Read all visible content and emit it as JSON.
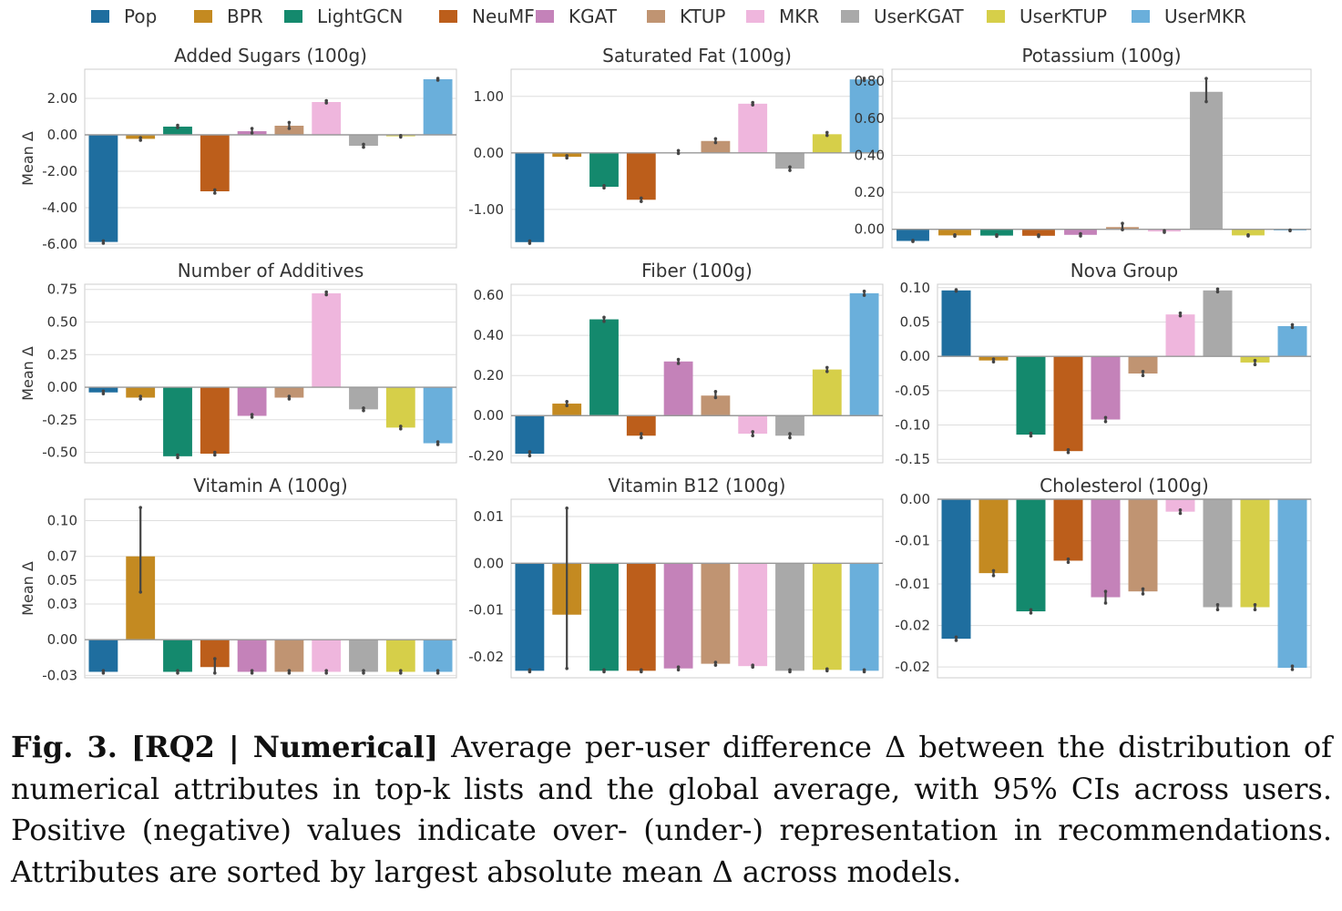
{
  "legend": {
    "items": [
      {
        "name": "Pop",
        "color": "#1f6e9f"
      },
      {
        "name": "BPR",
        "color": "#c48a21"
      },
      {
        "name": "LightGCN",
        "color": "#14896d"
      },
      {
        "name": "NeuMF",
        "color": "#bc5e1b"
      },
      {
        "name": "KGAT",
        "color": "#c482b9"
      },
      {
        "name": "KTUP",
        "color": "#c09472"
      },
      {
        "name": "MKR",
        "color": "#efb6dd"
      },
      {
        "name": "UserKGAT",
        "color": "#a9a9a9"
      },
      {
        "name": "UserKTUP",
        "color": "#d6cf49"
      },
      {
        "name": "UserMKR",
        "color": "#6aafdb"
      }
    ]
  },
  "chart_data": [
    {
      "type": "bar",
      "title": "Added Sugars (100g)",
      "ylabel": "Mean Δ",
      "categories": [
        "Pop",
        "BPR",
        "LightGCN",
        "NeuMF",
        "KGAT",
        "KTUP",
        "MKR",
        "UserKGAT",
        "UserKTUP",
        "UserMKR"
      ],
      "values": [
        -5.88,
        -0.22,
        0.45,
        -3.1,
        0.2,
        0.5,
        1.8,
        -0.6,
        -0.08,
        3.05
      ],
      "ci_low": [
        -5.95,
        -0.3,
        0.4,
        -3.2,
        0.1,
        0.35,
        1.75,
        -0.68,
        -0.12,
        3.0
      ],
      "ci_high": [
        -5.82,
        -0.16,
        0.52,
        -3.02,
        0.35,
        0.68,
        1.87,
        -0.52,
        -0.04,
        3.1
      ],
      "yticks": [
        2.0,
        0.0,
        -2.0,
        -4.0,
        -6.0
      ],
      "yticklabels": [
        "2.00",
        "0.00",
        "-2.00",
        "-4.00",
        "-6.00"
      ],
      "ylim": [
        -6.2,
        3.6
      ]
    },
    {
      "type": "bar",
      "title": "Saturated Fat (100g)",
      "ylabel": "",
      "categories": [
        "Pop",
        "BPR",
        "LightGCN",
        "NeuMF",
        "KGAT",
        "KTUP",
        "MKR",
        "UserKGAT",
        "UserKTUP",
        "UserMKR"
      ],
      "values": [
        -1.58,
        -0.07,
        -0.6,
        -0.83,
        0.0,
        0.21,
        0.87,
        -0.28,
        0.33,
        1.3
      ],
      "ci_low": [
        -1.6,
        -0.09,
        -0.62,
        -0.86,
        -0.01,
        0.18,
        0.85,
        -0.31,
        0.31,
        1.28
      ],
      "ci_high": [
        -1.56,
        -0.05,
        -0.58,
        -0.8,
        0.04,
        0.25,
        0.89,
        -0.25,
        0.36,
        1.32
      ],
      "yticks": [
        1.0,
        0.0,
        -1.0
      ],
      "yticklabels": [
        "1.00",
        "0.00",
        "-1.00"
      ],
      "ylim": [
        -1.68,
        1.48
      ]
    },
    {
      "type": "bar",
      "title": "Potassium (100g)",
      "ylabel": "",
      "categories": [
        "Pop",
        "BPR",
        "LightGCN",
        "NeuMF",
        "KGAT",
        "KTUP",
        "MKR",
        "UserKGAT",
        "UserKTUP",
        "UserMKR"
      ],
      "values": [
        -0.063,
        -0.033,
        -0.034,
        -0.035,
        -0.03,
        0.012,
        -0.012,
        0.743,
        -0.033,
        -0.006
      ],
      "ci_low": [
        -0.066,
        -0.037,
        -0.038,
        -0.039,
        -0.036,
        -0.002,
        -0.016,
        0.69,
        -0.036,
        -0.008
      ],
      "ci_high": [
        -0.06,
        -0.03,
        -0.03,
        -0.031,
        -0.024,
        0.032,
        -0.008,
        0.815,
        -0.03,
        -0.004
      ],
      "yticks": [
        0.8,
        0.6,
        0.4,
        0.2,
        0.0
      ],
      "yticklabels": [
        "0.80",
        "0.60",
        "0.40",
        "0.20",
        "0.00"
      ],
      "ylim": [
        -0.1,
        0.865
      ]
    },
    {
      "type": "bar",
      "title": "Number of Additives",
      "ylabel": "Mean Δ",
      "categories": [
        "Pop",
        "BPR",
        "LightGCN",
        "NeuMF",
        "KGAT",
        "KTUP",
        "MKR",
        "UserKGAT",
        "UserKTUP",
        "UserMKR"
      ],
      "values": [
        -0.04,
        -0.08,
        -0.53,
        -0.51,
        -0.22,
        -0.08,
        0.72,
        -0.17,
        -0.31,
        -0.43
      ],
      "ci_low": [
        -0.05,
        -0.09,
        -0.54,
        -0.52,
        -0.23,
        -0.09,
        0.71,
        -0.18,
        -0.32,
        -0.44
      ],
      "ci_high": [
        -0.03,
        -0.07,
        -0.52,
        -0.5,
        -0.21,
        -0.07,
        0.73,
        -0.16,
        -0.3,
        -0.42
      ],
      "yticks": [
        0.75,
        0.5,
        0.25,
        0.0,
        -0.25,
        -0.5
      ],
      "yticklabels": [
        "0.75",
        "0.50",
        "0.25",
        "0.00",
        "-0.25",
        "-0.50"
      ],
      "ylim": [
        -0.58,
        0.79
      ]
    },
    {
      "type": "bar",
      "title": "Fiber (100g)",
      "ylabel": "",
      "categories": [
        "Pop",
        "BPR",
        "LightGCN",
        "NeuMF",
        "KGAT",
        "KTUP",
        "MKR",
        "UserKGAT",
        "UserKTUP",
        "UserMKR"
      ],
      "values": [
        -0.19,
        0.06,
        0.48,
        -0.1,
        0.27,
        0.1,
        -0.09,
        -0.1,
        0.23,
        0.61
      ],
      "ci_low": [
        -0.2,
        0.05,
        0.47,
        -0.11,
        0.26,
        0.09,
        -0.1,
        -0.11,
        0.22,
        0.6
      ],
      "ci_high": [
        -0.18,
        0.07,
        0.49,
        -0.09,
        0.28,
        0.12,
        -0.08,
        -0.09,
        0.24,
        0.62
      ],
      "yticks": [
        0.6,
        0.4,
        0.2,
        0.0,
        -0.2
      ],
      "yticklabels": [
        "0.60",
        "0.40",
        "0.20",
        "0.00",
        "-0.20"
      ],
      "ylim": [
        -0.235,
        0.655
      ]
    },
    {
      "type": "bar",
      "title": "Nova Group",
      "ylabel": "",
      "categories": [
        "Pop",
        "BPR",
        "LightGCN",
        "NeuMF",
        "KGAT",
        "KTUP",
        "MKR",
        "UserKGAT",
        "UserKTUP",
        "UserMKR"
      ],
      "values": [
        0.096,
        -0.006,
        -0.114,
        -0.138,
        -0.092,
        -0.025,
        0.061,
        0.096,
        -0.009,
        0.044
      ],
      "ci_low": [
        0.095,
        -0.008,
        -0.116,
        -0.14,
        -0.095,
        -0.028,
        0.059,
        0.094,
        -0.012,
        0.042
      ],
      "ci_high": [
        0.097,
        -0.004,
        -0.112,
        -0.136,
        -0.089,
        -0.022,
        0.063,
        0.098,
        -0.006,
        0.046
      ],
      "yticks": [
        0.1,
        0.05,
        0.0,
        -0.05,
        -0.1,
        -0.15
      ],
      "yticklabels": [
        "0.10",
        "0.05",
        "0.00",
        "-0.05",
        "-0.10",
        "-0.15"
      ],
      "ylim": [
        -0.155,
        0.105
      ]
    },
    {
      "type": "bar",
      "title": "Vitamin A (100g)",
      "ylabel": "Mean Δ",
      "categories": [
        "Pop",
        "BPR",
        "LightGCN",
        "NeuMF",
        "KGAT",
        "KTUP",
        "MKR",
        "UserKGAT",
        "UserKTUP",
        "UserMKR"
      ],
      "values": [
        -0.027,
        0.07,
        -0.027,
        -0.023,
        -0.027,
        -0.027,
        -0.027,
        -0.027,
        -0.027,
        -0.027
      ],
      "ci_low": [
        -0.028,
        0.04,
        -0.028,
        -0.028,
        -0.028,
        -0.028,
        -0.028,
        -0.028,
        -0.028,
        -0.028
      ],
      "ci_high": [
        -0.026,
        0.111,
        -0.026,
        -0.016,
        -0.026,
        -0.026,
        -0.026,
        -0.026,
        -0.026,
        -0.026
      ],
      "yticks": [
        0.1,
        0.07,
        0.05,
        0.03,
        0.0,
        -0.03
      ],
      "yticklabels": [
        "0.10",
        "0.07",
        "0.05",
        "0.03",
        "0.00",
        "-0.03"
      ],
      "ylim": [
        -0.032,
        0.118
      ]
    },
    {
      "type": "bar",
      "title": "Vitamin B12 (100g)",
      "ylabel": "",
      "categories": [
        "Pop",
        "BPR",
        "LightGCN",
        "NeuMF",
        "KGAT",
        "KTUP",
        "MKR",
        "UserKGAT",
        "UserKTUP",
        "UserMKR"
      ],
      "values": [
        -0.023,
        -0.011,
        -0.023,
        -0.023,
        -0.0225,
        -0.0215,
        -0.022,
        -0.023,
        -0.0228,
        -0.023
      ],
      "ci_low": [
        -0.0232,
        -0.0225,
        -0.0232,
        -0.0232,
        -0.0228,
        -0.0218,
        -0.0222,
        -0.0232,
        -0.023,
        -0.0232
      ],
      "ci_high": [
        -0.0228,
        0.0118,
        -0.0228,
        -0.0228,
        -0.0222,
        -0.0212,
        -0.0218,
        -0.0228,
        -0.0226,
        -0.0228
      ],
      "yticks": [
        0.01,
        0.0,
        -0.01,
        -0.02
      ],
      "yticklabels": [
        "0.01",
        "0.00",
        "-0.01",
        "-0.02"
      ],
      "ylim": [
        -0.0245,
        0.0137
      ]
    },
    {
      "type": "bar",
      "title": "Cholesterol (100g)",
      "ylabel": "",
      "categories": [
        "Pop",
        "BPR",
        "LightGCN",
        "NeuMF",
        "KGAT",
        "KTUP",
        "MKR",
        "UserKGAT",
        "UserKTUP",
        "UserMKR"
      ],
      "values": [
        -0.0168,
        -0.0089,
        -0.0135,
        -0.0074,
        -0.0118,
        -0.0111,
        -0.0015,
        -0.013,
        -0.013,
        -0.0203
      ],
      "ci_low": [
        -0.017,
        -0.0092,
        -0.0137,
        -0.0076,
        -0.0125,
        -0.0114,
        -0.0017,
        -0.0133,
        -0.0133,
        -0.0205
      ],
      "ci_high": [
        -0.0166,
        -0.0086,
        -0.0133,
        -0.0072,
        -0.0111,
        -0.0108,
        -0.0013,
        -0.0127,
        -0.0127,
        -0.0201
      ],
      "yticks": [
        0.0,
        -0.005,
        -0.0102,
        -0.0152,
        -0.0202
      ],
      "yticklabels": [
        "0.00",
        "-0.01",
        "-0.01",
        "-0.02",
        "-0.02"
      ],
      "ylim": [
        -0.0215,
        0.0
      ]
    }
  ],
  "caption": {
    "label": "Fig. 3. [RQ2 | Numerical]",
    "text": " Average per-user difference Δ between the distribution of numerical attributes in top-k lists and the global average, with 95% CIs across users. Positive (negative) values indicate over- (under-) representation in recommendations. Attributes are sorted by largest absolute mean Δ across models."
  }
}
